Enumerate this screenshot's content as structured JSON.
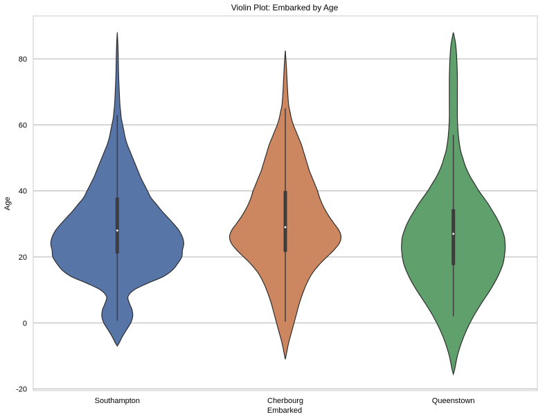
{
  "chart_data": {
    "type": "violin",
    "title": "Violin Plot: Embarked by Age",
    "xlabel": "Embarked",
    "ylabel": "Age",
    "ylim": [
      -20.5,
      93
    ],
    "yticks": [
      -20,
      0,
      20,
      40,
      60,
      80
    ],
    "grid": true,
    "categories": [
      "Southampton",
      "Cherbourg",
      "Queenstown"
    ],
    "colors": [
      "#5875a8",
      "#cd8760",
      "#5fa06c"
    ],
    "box_color": "#3d3d3d",
    "median_color": "#ffffff",
    "series": [
      {
        "category": "Southampton",
        "color": "#5875a8",
        "median": 28,
        "q1": 21,
        "q3": 38,
        "whisker_low": 0.7,
        "whisker_high": 63,
        "density_profile": [
          [
            -7,
            0
          ],
          [
            -6,
            3
          ],
          [
            -4,
            8
          ],
          [
            -2,
            14
          ],
          [
            0,
            20
          ],
          [
            2,
            23
          ],
          [
            4,
            22
          ],
          [
            6,
            18
          ],
          [
            8,
            16
          ],
          [
            10,
            25
          ],
          [
            12,
            45
          ],
          [
            14,
            68
          ],
          [
            16,
            82
          ],
          [
            18,
            90
          ],
          [
            20,
            96
          ],
          [
            22,
            97
          ],
          [
            24,
            99
          ],
          [
            26,
            97
          ],
          [
            28,
            92
          ],
          [
            30,
            84
          ],
          [
            32,
            75
          ],
          [
            34,
            66
          ],
          [
            36,
            58
          ],
          [
            38,
            50
          ],
          [
            40,
            45
          ],
          [
            42,
            40
          ],
          [
            44,
            35
          ],
          [
            46,
            31
          ],
          [
            48,
            27
          ],
          [
            50,
            23
          ],
          [
            52,
            19
          ],
          [
            54,
            15
          ],
          [
            56,
            12
          ],
          [
            58,
            10
          ],
          [
            60,
            8
          ],
          [
            62,
            6
          ],
          [
            64,
            5
          ],
          [
            66,
            4
          ],
          [
            70,
            3
          ],
          [
            75,
            2
          ],
          [
            80,
            1.5
          ],
          [
            84,
            1
          ],
          [
            88,
            0
          ]
        ]
      },
      {
        "category": "Cherbourg",
        "color": "#cd8760",
        "median": 29,
        "q1": 21.5,
        "q3": 40,
        "whisker_low": 0.4,
        "whisker_high": 65,
        "density_profile": [
          [
            -11,
            0
          ],
          [
            -9,
            2
          ],
          [
            -6,
            5
          ],
          [
            -3,
            9
          ],
          [
            0,
            13
          ],
          [
            3,
            17
          ],
          [
            6,
            21
          ],
          [
            9,
            26
          ],
          [
            12,
            32
          ],
          [
            15,
            40
          ],
          [
            18,
            52
          ],
          [
            20,
            62
          ],
          [
            22,
            72
          ],
          [
            24,
            80
          ],
          [
            26,
            83
          ],
          [
            28,
            80
          ],
          [
            30,
            73
          ],
          [
            32,
            66
          ],
          [
            34,
            60
          ],
          [
            36,
            55
          ],
          [
            38,
            51
          ],
          [
            40,
            48
          ],
          [
            42,
            44
          ],
          [
            44,
            40
          ],
          [
            46,
            36
          ],
          [
            48,
            33
          ],
          [
            50,
            30
          ],
          [
            52,
            27
          ],
          [
            54,
            24
          ],
          [
            56,
            20
          ],
          [
            58,
            16
          ],
          [
            60,
            12
          ],
          [
            62,
            9
          ],
          [
            64,
            7
          ],
          [
            66,
            5
          ],
          [
            70,
            3.5
          ],
          [
            74,
            2.5
          ],
          [
            78,
            1.5
          ],
          [
            82.5,
            0
          ]
        ]
      },
      {
        "category": "Queenstown",
        "color": "#5fa06c",
        "median": 27,
        "q1": 17.5,
        "q3": 34.5,
        "whisker_low": 2,
        "whisker_high": 57,
        "density_profile": [
          [
            -15.5,
            0
          ],
          [
            -14,
            2
          ],
          [
            -10,
            6
          ],
          [
            -6,
            12
          ],
          [
            -2,
            20
          ],
          [
            2,
            30
          ],
          [
            6,
            42
          ],
          [
            10,
            55
          ],
          [
            14,
            66
          ],
          [
            18,
            74
          ],
          [
            22,
            77
          ],
          [
            24,
            77
          ],
          [
            26,
            76
          ],
          [
            28,
            73
          ],
          [
            30,
            69
          ],
          [
            32,
            64
          ],
          [
            34,
            58
          ],
          [
            36,
            52
          ],
          [
            38,
            45
          ],
          [
            40,
            38
          ],
          [
            42,
            32
          ],
          [
            44,
            26
          ],
          [
            46,
            21
          ],
          [
            48,
            17
          ],
          [
            50,
            14
          ],
          [
            52,
            11
          ],
          [
            55,
            8.5
          ],
          [
            58,
            7
          ],
          [
            62,
            6
          ],
          [
            66,
            6
          ],
          [
            70,
            6
          ],
          [
            74,
            6
          ],
          [
            78,
            5.5
          ],
          [
            82,
            4.5
          ],
          [
            85,
            3
          ],
          [
            88,
            0
          ]
        ]
      }
    ]
  }
}
